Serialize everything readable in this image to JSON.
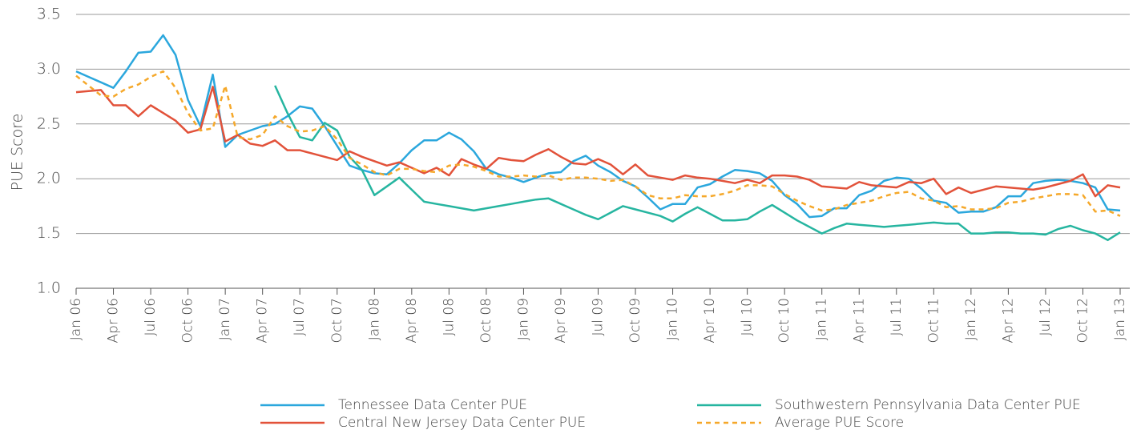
{
  "chart_data": {
    "type": "line",
    "ylabel": "PUE Score",
    "xlim": [
      "2006-01",
      "2013-01"
    ],
    "xticks": [
      {
        "value": "2006-01",
        "label": "Jan 06"
      },
      {
        "value": "2006-04",
        "label": "Apr 06"
      },
      {
        "value": "2006-07",
        "label": "Jul 06"
      },
      {
        "value": "2006-10",
        "label": "Oct 06"
      },
      {
        "value": "2007-01",
        "label": "Jan 07"
      },
      {
        "value": "2007-04",
        "label": "Apr 07"
      },
      {
        "value": "2007-07",
        "label": "Jul 07"
      },
      {
        "value": "2007-10",
        "label": "Oct 07"
      },
      {
        "value": "2008-01",
        "label": "Jan 08"
      },
      {
        "value": "2008-04",
        "label": "Apr 08"
      },
      {
        "value": "2008-07",
        "label": "Jul 08"
      },
      {
        "value": "2008-10",
        "label": "Oct 08"
      },
      {
        "value": "2009-01",
        "label": "Jan 09"
      },
      {
        "value": "2009-04",
        "label": "Apr 09"
      },
      {
        "value": "2009-07",
        "label": "Jul 09"
      },
      {
        "value": "2009-10",
        "label": "Oct 09"
      },
      {
        "value": "2010-01",
        "label": "Jan 10"
      },
      {
        "value": "2010-04",
        "label": "Apr 10"
      },
      {
        "value": "2010-07",
        "label": "Jul 10"
      },
      {
        "value": "2010-10",
        "label": "Oct 10"
      },
      {
        "value": "2011-01",
        "label": "Jan 11"
      },
      {
        "value": "2011-04",
        "label": "Apr 11"
      },
      {
        "value": "2011-07",
        "label": "Jul 11"
      },
      {
        "value": "2011-10",
        "label": "Oct 11"
      },
      {
        "value": "2012-01",
        "label": "Jan 12"
      },
      {
        "value": "2012-04",
        "label": "Apr 12"
      },
      {
        "value": "2012-07",
        "label": "Jul 12"
      },
      {
        "value": "2012-10",
        "label": "Oct 12"
      },
      {
        "value": "2013-01",
        "label": "Jan 13"
      }
    ],
    "ylim": [
      1,
      3.5
    ],
    "yticks": [
      {
        "value": 1,
        "label": "1.0"
      },
      1.5,
      {
        "value": 2,
        "label": "2.0"
      },
      2.5,
      {
        "value": 3,
        "label": "3.0"
      },
      3.5
    ],
    "grid": true,
    "legend": "bottom",
    "x": [
      "2006-01",
      "2006-02",
      "2006-03",
      "2006-04",
      "2006-05",
      "2006-06",
      "2006-07",
      "2006-08",
      "2006-09",
      "2006-10",
      "2006-11",
      "2006-12",
      "2007-01",
      "2007-02",
      "2007-03",
      "2007-04",
      "2007-05",
      "2007-06",
      "2007-07",
      "2007-08",
      "2007-09",
      "2007-10",
      "2007-11",
      "2007-12",
      "2008-01",
      "2008-02",
      "2008-03",
      "2008-04",
      "2008-05",
      "2008-06",
      "2008-07",
      "2008-08",
      "2008-09",
      "2008-10",
      "2008-11",
      "2008-12",
      "2009-01",
      "2009-02",
      "2009-03",
      "2009-04",
      "2009-05",
      "2009-06",
      "2009-07",
      "2009-08",
      "2009-09",
      "2009-10",
      "2009-11",
      "2009-12",
      "2010-01",
      "2010-02",
      "2010-03",
      "2010-04",
      "2010-05",
      "2010-06",
      "2010-07",
      "2010-08",
      "2010-09",
      "2010-10",
      "2010-11",
      "2010-12",
      "2011-01",
      "2011-02",
      "2011-03",
      "2011-04",
      "2011-05",
      "2011-06",
      "2011-07",
      "2011-08",
      "2011-09",
      "2011-10",
      "2011-11",
      "2011-12",
      "2012-01",
      "2012-02",
      "2012-03",
      "2012-04",
      "2012-05",
      "2012-06",
      "2012-07",
      "2012-08",
      "2012-09",
      "2012-10",
      "2012-11",
      "2012-12",
      "2013-01"
    ],
    "series": [
      {
        "name": "Tennessee Data Center PUE",
        "color": "#2ba7dd",
        "style": "solid",
        "values": [
          2.98,
          2.93,
          2.88,
          2.83,
          2.98,
          3.15,
          3.16,
          3.31,
          3.13,
          2.72,
          2.48,
          2.95,
          2.29,
          2.4,
          2.44,
          2.48,
          2.5,
          2.57,
          2.66,
          2.64,
          2.48,
          2.3,
          2.12,
          2.08,
          2.05,
          2.04,
          2.14,
          2.26,
          2.35,
          2.35,
          2.42,
          2.36,
          2.25,
          2.09,
          2.04,
          2.01,
          1.97,
          2.01,
          2.05,
          2.06,
          2.16,
          2.21,
          2.12,
          2.06,
          1.98,
          1.93,
          1.83,
          1.72,
          1.77,
          1.77,
          1.92,
          1.95,
          2.02,
          2.08,
          2.07,
          2.05,
          1.98,
          1.85,
          1.77,
          1.65,
          1.66,
          1.73,
          1.73,
          1.85,
          1.89,
          1.98,
          2.01,
          2.0,
          1.91,
          1.8,
          1.78,
          1.69,
          1.7,
          1.7,
          1.74,
          1.84,
          1.84,
          1.96,
          1.98,
          1.99,
          1.98,
          1.96,
          1.92,
          1.72,
          1.71
        ]
      },
      {
        "name": "Southwestern Pennsylvania Data Center PUE",
        "color": "#26b5a0",
        "style": "solid",
        "values": [
          null,
          null,
          null,
          null,
          null,
          null,
          null,
          null,
          null,
          null,
          null,
          null,
          null,
          null,
          null,
          null,
          2.85,
          2.6,
          2.38,
          2.35,
          2.51,
          2.44,
          2.2,
          2.08,
          1.85,
          1.93,
          2.01,
          1.9,
          1.79,
          1.77,
          1.75,
          1.73,
          1.71,
          1.73,
          1.75,
          1.77,
          1.79,
          1.81,
          1.82,
          1.77,
          1.72,
          1.67,
          1.63,
          1.69,
          1.75,
          1.72,
          1.69,
          1.66,
          1.61,
          1.68,
          1.74,
          1.68,
          1.62,
          1.62,
          1.63,
          1.7,
          1.76,
          1.69,
          1.62,
          1.56,
          1.5,
          1.55,
          1.59,
          1.58,
          1.57,
          1.56,
          1.57,
          1.58,
          1.59,
          1.6,
          1.59,
          1.59,
          1.5,
          1.5,
          1.51,
          1.51,
          1.5,
          1.5,
          1.49,
          1.54,
          1.57,
          1.53,
          1.5,
          1.44,
          1.51
        ]
      },
      {
        "name": "Central New Jersey Data Center PUE",
        "color": "#e2523a",
        "style": "solid",
        "values": [
          2.79,
          2.8,
          2.81,
          2.67,
          2.67,
          2.57,
          2.67,
          2.6,
          2.53,
          2.42,
          2.45,
          2.84,
          2.34,
          2.4,
          2.32,
          2.3,
          2.35,
          2.26,
          2.26,
          2.23,
          2.2,
          2.17,
          2.25,
          2.2,
          2.16,
          2.12,
          2.15,
          2.1,
          2.05,
          2.1,
          2.03,
          2.18,
          2.13,
          2.09,
          2.19,
          2.17,
          2.16,
          2.22,
          2.27,
          2.2,
          2.14,
          2.13,
          2.18,
          2.13,
          2.04,
          2.13,
          2.03,
          2.01,
          1.99,
          2.03,
          2.01,
          2.0,
          1.98,
          1.96,
          1.99,
          1.96,
          2.03,
          2.03,
          2.02,
          1.99,
          1.93,
          1.92,
          1.91,
          1.97,
          1.94,
          1.93,
          1.92,
          1.97,
          1.96,
          2.0,
          1.86,
          1.92,
          1.87,
          1.9,
          1.93,
          1.92,
          1.91,
          1.9,
          1.92,
          1.95,
          1.98,
          2.04,
          1.84,
          1.94,
          1.92
        ]
      },
      {
        "name": "Average PUE Score",
        "color": "#f5a82a",
        "style": "dashed",
        "values": [
          2.94,
          2.85,
          2.76,
          2.75,
          2.82,
          2.86,
          2.93,
          2.98,
          2.83,
          2.6,
          2.44,
          2.46,
          2.85,
          2.38,
          2.36,
          2.4,
          2.57,
          2.48,
          2.43,
          2.44,
          2.48,
          2.36,
          2.19,
          2.13,
          2.06,
          2.03,
          2.09,
          2.09,
          2.07,
          2.06,
          2.12,
          2.13,
          2.11,
          2.07,
          2.02,
          2.02,
          2.03,
          2.02,
          2.03,
          1.99,
          2.01,
          2.01,
          2.0,
          1.98,
          1.99,
          1.93,
          1.85,
          1.82,
          1.82,
          1.85,
          1.84,
          1.84,
          1.86,
          1.89,
          1.94,
          1.94,
          1.93,
          1.86,
          1.8,
          1.75,
          1.71,
          1.72,
          1.76,
          1.78,
          1.8,
          1.84,
          1.87,
          1.88,
          1.82,
          1.8,
          1.74,
          1.75,
          1.72,
          1.72,
          1.73,
          1.78,
          1.79,
          1.82,
          1.84,
          1.86,
          1.86,
          1.85,
          1.7,
          1.71,
          1.66
        ]
      }
    ]
  }
}
